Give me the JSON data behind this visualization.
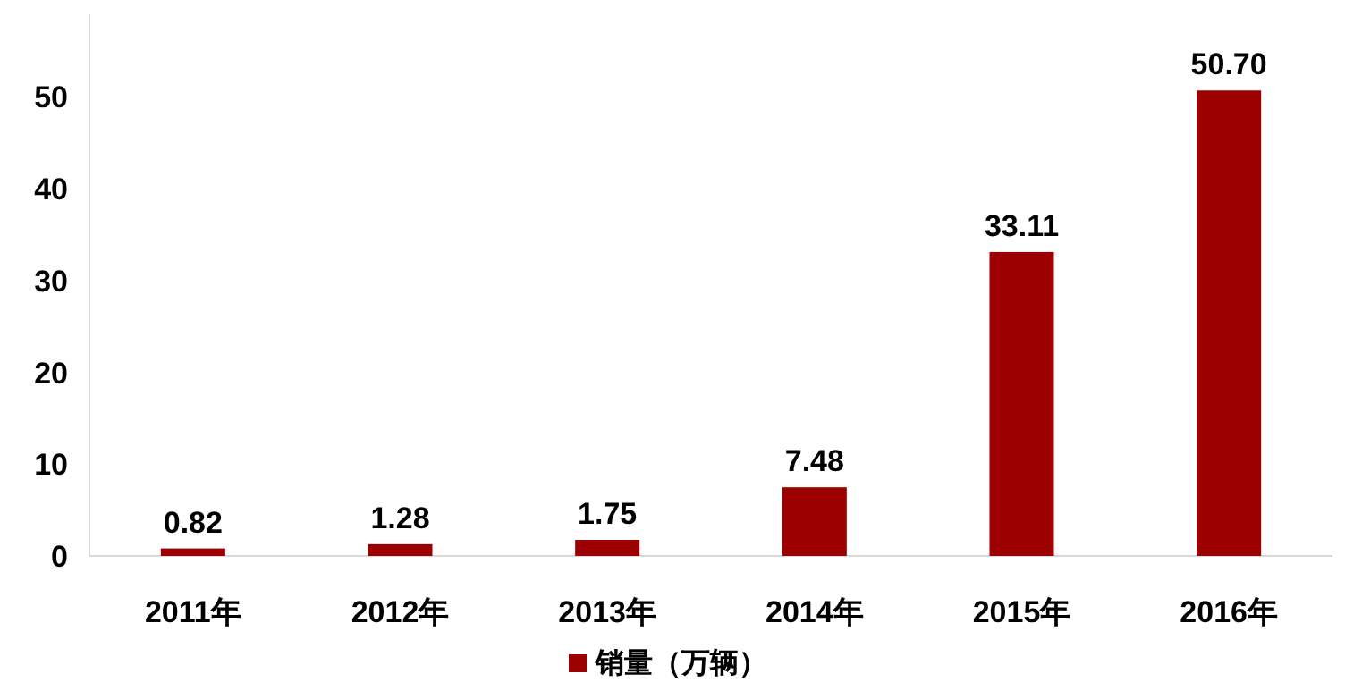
{
  "chart_data": {
    "type": "bar",
    "categories": [
      "2011年",
      "2012年",
      "2013年",
      "2014年",
      "2015年",
      "2016年"
    ],
    "series": [
      {
        "name": "销量（万辆）",
        "color": "#9c0000",
        "values": [
          0.82,
          1.28,
          1.75,
          7.48,
          33.11,
          50.7
        ],
        "value_labels": [
          "0.82",
          "1.28",
          "1.75",
          "7.48",
          "33.11",
          "50.70"
        ]
      }
    ],
    "ylim": [
      0,
      59
    ],
    "yticks": [
      0,
      10,
      20,
      30,
      40,
      50
    ],
    "legend": "bottom"
  }
}
